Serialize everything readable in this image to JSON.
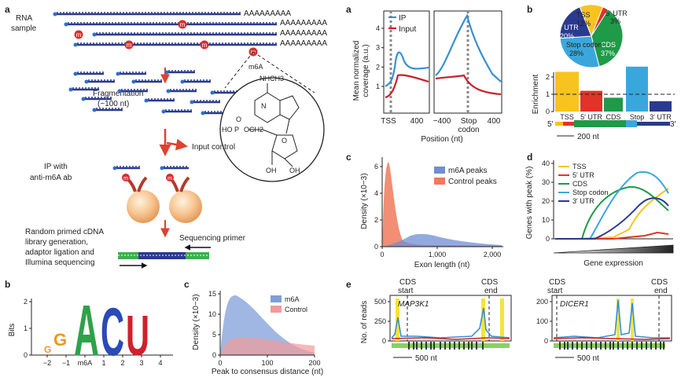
{
  "workflow": {
    "panel": "a",
    "rna_label": "RNA",
    "sample_label": "sample",
    "polyA": "AAAAAAAAA",
    "mark": "m",
    "A": "A",
    "m6a_label": "m6A",
    "nhch3": "NHCH3",
    "ho": "HO",
    "p": "P",
    "och2": "OCH2",
    "o": "O",
    "oh1": "OH",
    "oh2": "OH",
    "n": "N",
    "fragmentation": "Fragmentation",
    "frag_size": "(~100 nt)",
    "input_control": "Input control",
    "ip_line1": "IP with",
    "ip_line2": "anti-m6A ab",
    "lib_line1": "Random primed cDNA",
    "lib_line2": "library generation,",
    "lib_line3": "adaptor ligation and",
    "lib_line4": "Illumina sequencing",
    "seq_primer": "Sequencing primer"
  },
  "logo": {
    "panel": "b",
    "ylabel": "Bits",
    "yticks": [
      "0",
      "1",
      "2"
    ],
    "xticks": [
      "−2",
      "−1",
      "m6A",
      "1",
      "2",
      "3",
      "4"
    ],
    "letters": [
      "G",
      "G",
      "A",
      "C",
      "U"
    ]
  },
  "peak_dist": {
    "panel": "c",
    "ylabel": "Density (×10−3)",
    "xlabel": "Peak to consensus distance (nt)",
    "yticks": [
      "0",
      "5",
      "10",
      "15"
    ],
    "xticks": [
      "0",
      "100",
      "200"
    ],
    "legend": [
      "m6A",
      "Control"
    ],
    "colors": {
      "m6a": "#7f9fd8",
      "control": "#f29a9a"
    }
  },
  "coverage": {
    "panel": "a",
    "ylabel1": "Mean normalized",
    "ylabel2": "coverage (a.u.)",
    "yticks": [
      "1",
      "2",
      "3",
      "4"
    ],
    "xticks_left": [
      "TSS",
      "400"
    ],
    "xticks_right": [
      "−400",
      "Stop",
      "codon",
      "400"
    ],
    "xlabel": "Position (nt)",
    "legend": [
      "IP",
      "Input"
    ],
    "colors": {
      "ip": "#3a8fd0",
      "input": "#c8202c"
    }
  },
  "exon_len": {
    "panel": "c",
    "ylabel": "Density (×10−3)",
    "xlabel": "Exon length (nt)",
    "yticks": [
      "0",
      "2",
      "4",
      "6"
    ],
    "xticks": [
      "0",
      "1,000",
      "2,000"
    ],
    "legend": [
      "m6A peaks",
      "Control peaks"
    ]
  },
  "enrichment": {
    "panel": "b",
    "pie": [
      {
        "label": "TSS",
        "pct": "12%",
        "value": 12,
        "color": "#f7c31f"
      },
      {
        "label": "5′ UTR",
        "pct": "3%",
        "value": 3,
        "color": "#e13327"
      },
      {
        "label": "CDS",
        "pct": "37%",
        "value": 37,
        "color": "#1e9a48"
      },
      {
        "label": "Stop codon",
        "pct": "28%",
        "value": 28,
        "color": "#3aa7dc"
      },
      {
        "label": "3′ UTR",
        "pct": "20%",
        "value": 20,
        "color": "#2a3a8e"
      }
    ],
    "ylabel": "Enrichment",
    "yticks": [
      "0",
      "1",
      "2"
    ],
    "bars": [
      {
        "label": "TSS",
        "value": 2.3,
        "color": "#f7c31f"
      },
      {
        "label": "5′ UTR",
        "value": 1.2,
        "color": "#e13327"
      },
      {
        "label": "CDS",
        "value": 0.8,
        "color": "#1e9a48"
      },
      {
        "label": "Stop",
        "value": 2.6,
        "color": "#3aa7dc"
      },
      {
        "label": "3′ UTR",
        "value": 0.6,
        "color": "#2a3a8e"
      }
    ],
    "five": "5′",
    "three": "3′",
    "scale": "200 nt"
  },
  "expression": {
    "panel": "d",
    "ylabel": "Genes with peak (%)",
    "yticks": [
      "0",
      "10",
      "20",
      "30",
      "40"
    ],
    "xlabel": "Gene expression",
    "legend": [
      {
        "label": "TSS",
        "color": "#f7c31f"
      },
      {
        "label": "5′ UTR",
        "color": "#e13327"
      },
      {
        "label": "CDS",
        "color": "#1e9a48"
      },
      {
        "label": "Stop codon",
        "color": "#3aa7dc"
      },
      {
        "label": "3′ UTR",
        "color": "#2a3a8e"
      }
    ]
  },
  "reads": {
    "panel": "e",
    "ylabel": "No. of reads",
    "left": {
      "gene": "MAP3K1",
      "yticks": [
        "0",
        "250",
        "500"
      ],
      "cds_start1": "CDS",
      "cds_start2": "start",
      "cds_end1": "CDS",
      "cds_end2": "end",
      "scale": "500 nt"
    },
    "right": {
      "gene": "DICER1",
      "yticks": [
        "0",
        "100",
        "200"
      ],
      "cds_start1": "CDS",
      "cds_start2": "start",
      "cds_end1": "CDS",
      "cds_end2": "end",
      "scale": "500 nt"
    }
  }
}
